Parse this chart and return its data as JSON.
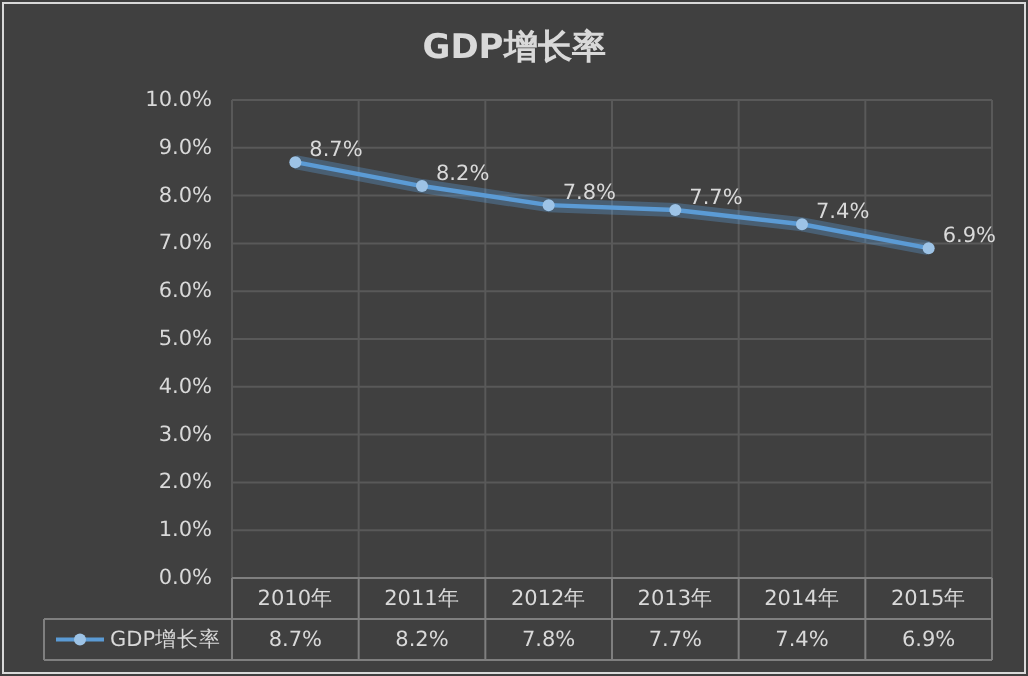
{
  "chart_data": {
    "type": "line",
    "title": "GDP增长率",
    "categories": [
      "2010年",
      "2011年",
      "2012年",
      "2013年",
      "2014年",
      "2015年"
    ],
    "series": [
      {
        "name": "GDP增长率",
        "color": "#5b9bd5",
        "values": [
          8.7,
          8.2,
          7.8,
          7.7,
          7.4,
          6.9
        ],
        "value_labels": [
          "8.7%",
          "8.2%",
          "7.8%",
          "7.7%",
          "7.4%",
          "6.9%"
        ]
      }
    ],
    "ylim": [
      0,
      10
    ],
    "yticks": [
      {
        "value": 0,
        "label": "0.0%"
      },
      {
        "value": 1,
        "label": "1.0%"
      },
      {
        "value": 2,
        "label": "2.0%"
      },
      {
        "value": 3,
        "label": "3.0%"
      },
      {
        "value": 4,
        "label": "4.0%"
      },
      {
        "value": 5,
        "label": "5.0%"
      },
      {
        "value": 6,
        "label": "6.0%"
      },
      {
        "value": 7,
        "label": "7.0%"
      },
      {
        "value": 8,
        "label": "8.0%"
      },
      {
        "value": 9,
        "label": "9.0%"
      },
      {
        "value": 10,
        "label": "10.0%"
      }
    ],
    "grid": true,
    "legend": "bottom left",
    "marker": "circle",
    "line_style": "solid"
  }
}
